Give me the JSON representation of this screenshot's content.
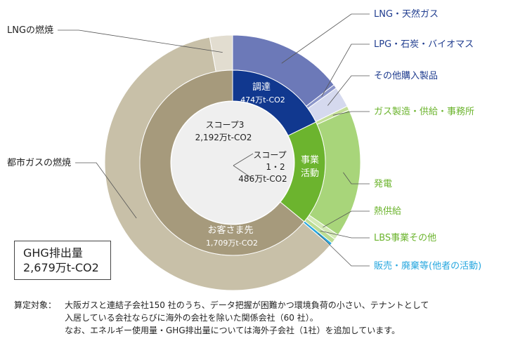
{
  "chart_data": {
    "type": "pie",
    "total": {
      "label": "GHG排出量",
      "value": "2,679万t-CO2"
    },
    "inner_ring": [
      {
        "name": "調達",
        "value_label": "474万t-CO2",
        "value": 474,
        "color": "#11388f"
      },
      {
        "name": "事業活動",
        "value_label": "",
        "value": 486,
        "color": "#6cb42e"
      },
      {
        "name": "お客さま先",
        "value_label": "1,709万t-CO2",
        "value": 1709,
        "color": "#a69a7c"
      }
    ],
    "outer_ring": [
      {
        "name": "LNG・天然ガス",
        "value": 390,
        "color": "#6c79b8",
        "label_color": "#1f3c8f"
      },
      {
        "name": "LPG・石炭・バイオマス",
        "value": 13,
        "color": "#8b95c9",
        "label_color": "#1f3c8f"
      },
      {
        "name": "その他購入製品",
        "value": 71,
        "color": "#d5d9ee",
        "label_color": "#1f3c8f"
      },
      {
        "name": "ガス製造・供給・事務所",
        "value": 14,
        "color": "#c3de96",
        "label_color": "#6cb42e"
      },
      {
        "name": "発電",
        "value": 438,
        "color": "#a8d57a",
        "label_color": "#6cb42e"
      },
      {
        "name": "熱供給",
        "value": 18,
        "color": "#d3e9b5",
        "label_color": "#6cb42e"
      },
      {
        "name": "LBS事業その他",
        "value": 16,
        "color": "#bcdd94",
        "label_color": "#6cb42e"
      },
      {
        "name": "販売・廃棄等(他者の活動)",
        "value": 10,
        "color": "#27a7df",
        "label_color": "#27a7df"
      },
      {
        "name": "都市ガスの燃焼",
        "value": 1632,
        "color": "#c8c0a8",
        "label_color": "#222222"
      },
      {
        "name": "LNGの燃焼",
        "value": 77,
        "color": "#e2ddd0",
        "label_color": "#222222"
      }
    ],
    "center": {
      "scope3_label": "スコープ3",
      "scope3_value": "2,192万t-CO2",
      "scope12_label": "スコープ",
      "scope12_num": "1・2",
      "scope12_value": "486万t-CO2"
    }
  },
  "footnote": {
    "prefix": "算定対象：",
    "line1": "大阪ガスと連結子会社150 社のうち、データ把握が困難かつ環境負荷の小さい、テナントとして",
    "line2": "入居している会社ならびに海外の会社を除いた関係会社（60 社）。",
    "line3": "なお、エネルギー使用量・GHG排出量については海外子会社（1社）を追加しています。"
  }
}
